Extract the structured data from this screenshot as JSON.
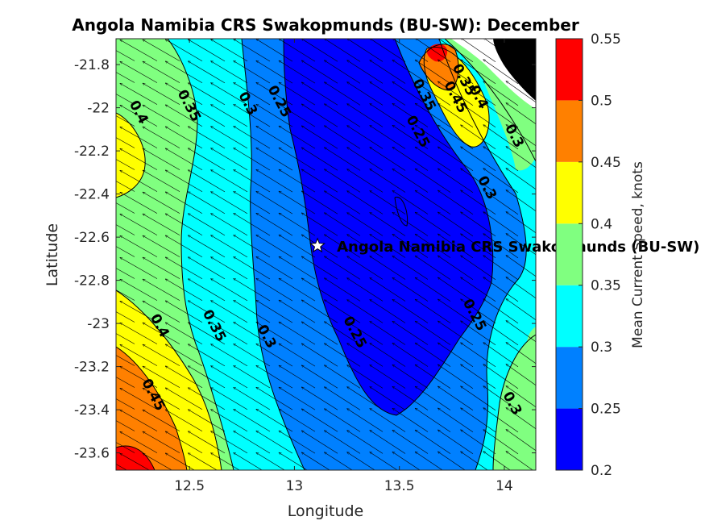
{
  "chart_data": {
    "type": "heatmap",
    "title": "Angola Namibia CRS Swakopmunds (BU-SW): December",
    "xlabel": "Longitude",
    "ylabel": "Latitude",
    "xlim": [
      12.15,
      14.15
    ],
    "ylim": [
      -23.68,
      -21.68
    ],
    "xticks": [
      "12.5",
      "13",
      "13.5",
      "14"
    ],
    "xtick_values": [
      12.5,
      13,
      13.5,
      14
    ],
    "yticks": [
      "-21.8",
      "-22",
      "-22.2",
      "-22.4",
      "-22.6",
      "-22.8",
      "-23",
      "-23.2",
      "-23.4",
      "-23.6"
    ],
    "ytick_values": [
      -21.8,
      -22,
      -22.2,
      -22.4,
      -22.6,
      -22.8,
      -23,
      -23.2,
      -23.4,
      -23.6
    ],
    "colorbar": {
      "label": "Mean Current Speed, knots",
      "tick_labels": [
        "0.2",
        "0.25",
        "0.3",
        "0.35",
        "0.4",
        "0.45",
        "0.5",
        "0.55"
      ],
      "levels": [
        0.2,
        0.25,
        0.3,
        0.35,
        0.4,
        0.45,
        0.5,
        0.55
      ],
      "colors": [
        "#0000ff",
        "#0080ff",
        "#00ffff",
        "#80ff80",
        "#ffff00",
        "#ff8000",
        "#ff0000"
      ]
    },
    "land_color": "#000000",
    "station": {
      "label": "Angola Namibia CRS Swakopmunds (BU-SW)",
      "lon": 13.11,
      "lat": -22.64,
      "marker": "star"
    },
    "contour_labels": [
      {
        "text": "0.4",
        "lon": 12.24,
        "lat": -22.03
      },
      {
        "text": "0.35",
        "lon": 12.48,
        "lat": -22.0
      },
      {
        "text": "0.3",
        "lon": 12.76,
        "lat": -21.99
      },
      {
        "text": "0.25",
        "lon": 12.91,
        "lat": -21.98
      },
      {
        "text": "0.35",
        "lon": 13.6,
        "lat": -21.95
      },
      {
        "text": "0.45",
        "lon": 13.75,
        "lat": -21.96
      },
      {
        "text": "0.35",
        "lon": 13.79,
        "lat": -21.88
      },
      {
        "text": "0.4",
        "lon": 13.86,
        "lat": -21.96
      },
      {
        "text": "0.25",
        "lon": 13.57,
        "lat": -22.12
      },
      {
        "text": "0.3",
        "lon": 14.03,
        "lat": -22.14
      },
      {
        "text": "0.3",
        "lon": 13.9,
        "lat": -22.38
      },
      {
        "text": "0.4",
        "lon": 12.34,
        "lat": -23.02
      },
      {
        "text": "0.35",
        "lon": 12.6,
        "lat": -23.02
      },
      {
        "text": "0.3",
        "lon": 12.85,
        "lat": -23.07
      },
      {
        "text": "0.25",
        "lon": 13.27,
        "lat": -23.05
      },
      {
        "text": "0.25",
        "lon": 13.84,
        "lat": -22.97
      },
      {
        "text": "0.45",
        "lon": 12.31,
        "lat": -23.34
      },
      {
        "text": "0.3",
        "lon": 14.02,
        "lat": -23.38
      }
    ],
    "flow_direction": "north-west",
    "grid": false,
    "colorbar_position": "right"
  }
}
